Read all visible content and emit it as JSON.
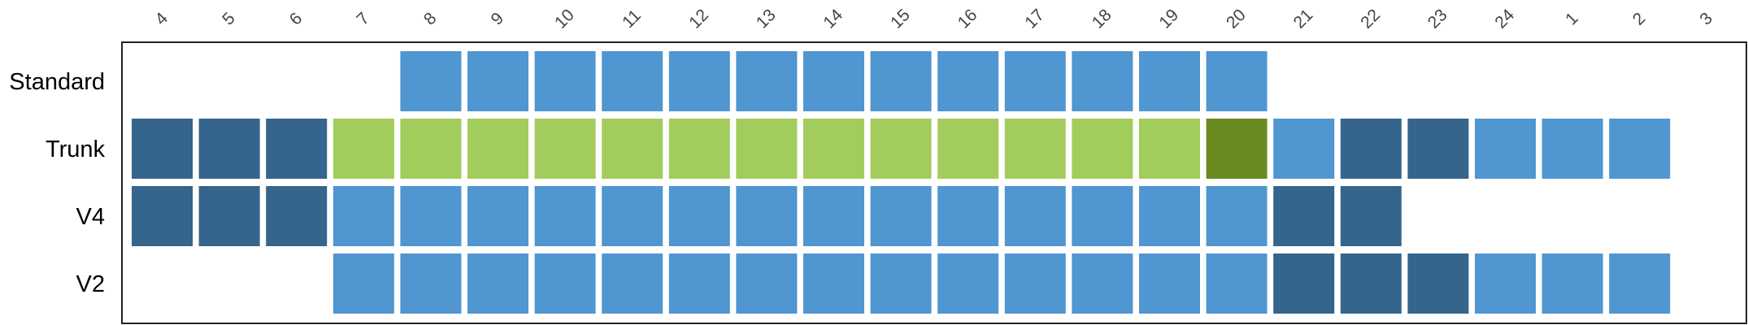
{
  "chart_data": {
    "type": "heatmap",
    "columns": [
      "4",
      "5",
      "6",
      "7",
      "8",
      "9",
      "10",
      "11",
      "12",
      "13",
      "14",
      "15",
      "16",
      "17",
      "18",
      "19",
      "20",
      "21",
      "22",
      "23",
      "24",
      "1",
      "2",
      "3"
    ],
    "rows": [
      {
        "label": "Standard",
        "label_color": "#000000",
        "cells": [
          null,
          null,
          null,
          null,
          "blue",
          "blue",
          "blue",
          "blue",
          "blue",
          "blue",
          "blue",
          "blue",
          "blue",
          "blue",
          "blue",
          "blue",
          "blue",
          null,
          null,
          null,
          null,
          null,
          null,
          null
        ]
      },
      {
        "label": "Trunk",
        "label_color": "#b0b0b0",
        "cells": [
          "dark",
          "dark",
          "dark",
          "lightgreen",
          "lightgreen",
          "lightgreen",
          "lightgreen",
          "lightgreen",
          "lightgreen",
          "lightgreen",
          "lightgreen",
          "lightgreen",
          "lightgreen",
          "lightgreen",
          "lightgreen",
          "lightgreen",
          "darkgreen",
          "blue",
          "dark",
          "dark",
          "blue",
          "blue",
          "blue",
          null
        ]
      },
      {
        "label": "V4",
        "label_color": "#000000",
        "cells": [
          "dark",
          "dark",
          "dark",
          "blue",
          "blue",
          "blue",
          "blue",
          "blue",
          "blue",
          "blue",
          "blue",
          "blue",
          "blue",
          "blue",
          "blue",
          "blue",
          "blue",
          "dark",
          "dark",
          null,
          null,
          null,
          null,
          null
        ]
      },
      {
        "label": "V2",
        "label_color": "#000000",
        "cells": [
          null,
          null,
          null,
          "blue",
          "blue",
          "blue",
          "blue",
          "blue",
          "blue",
          "blue",
          "blue",
          "blue",
          "blue",
          "blue",
          "blue",
          "blue",
          "blue",
          "dark",
          "dark",
          "dark",
          "blue",
          "blue",
          "blue",
          null
        ]
      }
    ],
    "colors": {
      "blue": "#5096d0",
      "dark": "#35648c",
      "lightgreen": "#a2cc5c",
      "darkgreen": "#6a8a22",
      "frame": "#222222"
    },
    "grid": false,
    "legend": "none"
  }
}
